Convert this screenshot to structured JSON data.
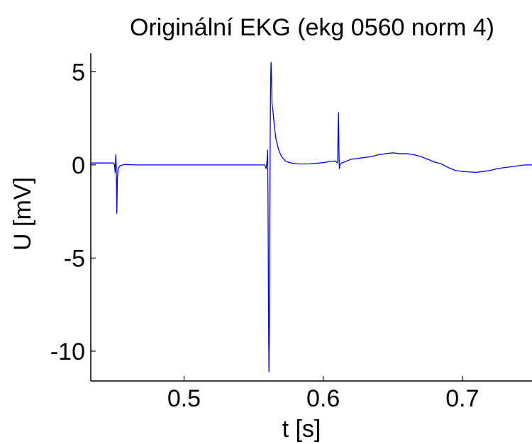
{
  "chart_data": {
    "type": "line",
    "title": "Originální EKG (ekg 0560 norm 4)",
    "xlabel": "t [s]",
    "ylabel": "U [mV]",
    "xlim": [
      0.433,
      0.75
    ],
    "ylim": [
      -11.6,
      6.0
    ],
    "grid": false,
    "legend": "none",
    "x_ticks": [
      {
        "value": 0.5,
        "label": "0.5"
      },
      {
        "value": 0.6,
        "label": "0.6"
      },
      {
        "value": 0.7,
        "label": "0.7"
      }
    ],
    "y_ticks": [
      {
        "value": 5,
        "label": "5"
      },
      {
        "value": 0,
        "label": "0"
      },
      {
        "value": -5,
        "label": "-5"
      },
      {
        "value": -10,
        "label": "-10"
      }
    ],
    "series": [
      {
        "color": "#0000ff",
        "points": [
          [
            0.433,
            0.1
          ],
          [
            0.44,
            0.1
          ],
          [
            0.449,
            0.1
          ],
          [
            0.45,
            0.05
          ],
          [
            0.4505,
            -0.4
          ],
          [
            0.4508,
            0.3
          ],
          [
            0.451,
            0.55
          ],
          [
            0.4513,
            -0.2
          ],
          [
            0.4517,
            -2.6
          ],
          [
            0.4521,
            -0.7
          ],
          [
            0.4526,
            -0.2
          ],
          [
            0.454,
            -0.05
          ],
          [
            0.457,
            0.02
          ],
          [
            0.465,
            0.0
          ],
          [
            0.48,
            0.0
          ],
          [
            0.5,
            0.0
          ],
          [
            0.52,
            0.0
          ],
          [
            0.54,
            0.0
          ],
          [
            0.555,
            0.0
          ],
          [
            0.558,
            0.0
          ],
          [
            0.559,
            -0.2
          ],
          [
            0.5596,
            0.2
          ],
          [
            0.5601,
            0.8
          ],
          [
            0.5604,
            -3.0
          ],
          [
            0.5607,
            -8.0
          ],
          [
            0.561,
            -11.1
          ],
          [
            0.5613,
            -9.0
          ],
          [
            0.5616,
            -3.0
          ],
          [
            0.5619,
            1.5
          ],
          [
            0.5622,
            4.5
          ],
          [
            0.5625,
            5.5
          ],
          [
            0.5628,
            4.8
          ],
          [
            0.5632,
            3.3
          ],
          [
            0.564,
            2.8
          ],
          [
            0.565,
            2.0
          ],
          [
            0.566,
            1.4
          ],
          [
            0.568,
            0.8
          ],
          [
            0.57,
            0.45
          ],
          [
            0.573,
            0.2
          ],
          [
            0.577,
            0.1
          ],
          [
            0.582,
            0.05
          ],
          [
            0.59,
            0.05
          ],
          [
            0.6,
            0.12
          ],
          [
            0.606,
            0.2
          ],
          [
            0.609,
            0.2
          ],
          [
            0.61,
            0.1
          ],
          [
            0.6104,
            0.2
          ],
          [
            0.6107,
            2.0
          ],
          [
            0.611,
            2.8
          ],
          [
            0.6113,
            0.8
          ],
          [
            0.6116,
            -0.2
          ],
          [
            0.612,
            0.0
          ],
          [
            0.613,
            0.1
          ],
          [
            0.615,
            0.15
          ],
          [
            0.62,
            0.3
          ],
          [
            0.625,
            0.35
          ],
          [
            0.63,
            0.4
          ],
          [
            0.635,
            0.45
          ],
          [
            0.64,
            0.55
          ],
          [
            0.645,
            0.6
          ],
          [
            0.65,
            0.65
          ],
          [
            0.655,
            0.6
          ],
          [
            0.66,
            0.6
          ],
          [
            0.665,
            0.55
          ],
          [
            0.67,
            0.45
          ],
          [
            0.675,
            0.3
          ],
          [
            0.68,
            0.15
          ],
          [
            0.685,
            0.05
          ],
          [
            0.69,
            -0.15
          ],
          [
            0.695,
            -0.3
          ],
          [
            0.7,
            -0.35
          ],
          [
            0.705,
            -0.38
          ],
          [
            0.71,
            -0.4
          ],
          [
            0.715,
            -0.35
          ],
          [
            0.72,
            -0.3
          ],
          [
            0.725,
            -0.2
          ],
          [
            0.73,
            -0.15
          ],
          [
            0.735,
            -0.1
          ],
          [
            0.74,
            -0.05
          ],
          [
            0.745,
            0.0
          ],
          [
            0.75,
            0.0
          ]
        ]
      }
    ]
  }
}
